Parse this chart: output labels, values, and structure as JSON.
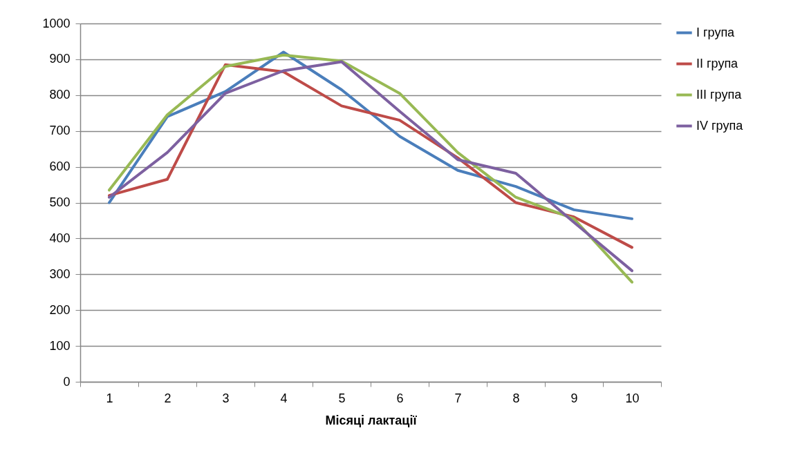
{
  "chart_data": {
    "type": "line",
    "xlabel": "Місяці лактації",
    "categories": [
      "1",
      "2",
      "3",
      "4",
      "5",
      "6",
      "7",
      "8",
      "9",
      "10"
    ],
    "series": [
      {
        "name": "I група",
        "color": "#4a7ebb",
        "values": [
          500,
          740,
          810,
          920,
          815,
          685,
          590,
          545,
          480,
          455
        ]
      },
      {
        "name": "II група",
        "color": "#be4b48",
        "values": [
          520,
          565,
          885,
          865,
          770,
          730,
          625,
          500,
          460,
          375
        ]
      },
      {
        "name": "III група",
        "color": "#98b954",
        "values": [
          535,
          745,
          880,
          912,
          895,
          805,
          640,
          515,
          455,
          278
        ]
      },
      {
        "name": "IV група",
        "color": "#7d60a0",
        "values": [
          515,
          640,
          805,
          868,
          893,
          755,
          620,
          582,
          445,
          310
        ]
      }
    ],
    "ylim": [
      0,
      1000
    ],
    "yticks": [
      0,
      100,
      200,
      300,
      400,
      500,
      600,
      700,
      800,
      900,
      1000
    ],
    "grid": "y",
    "legend": "right",
    "marker": "none",
    "line_style": "solid"
  }
}
